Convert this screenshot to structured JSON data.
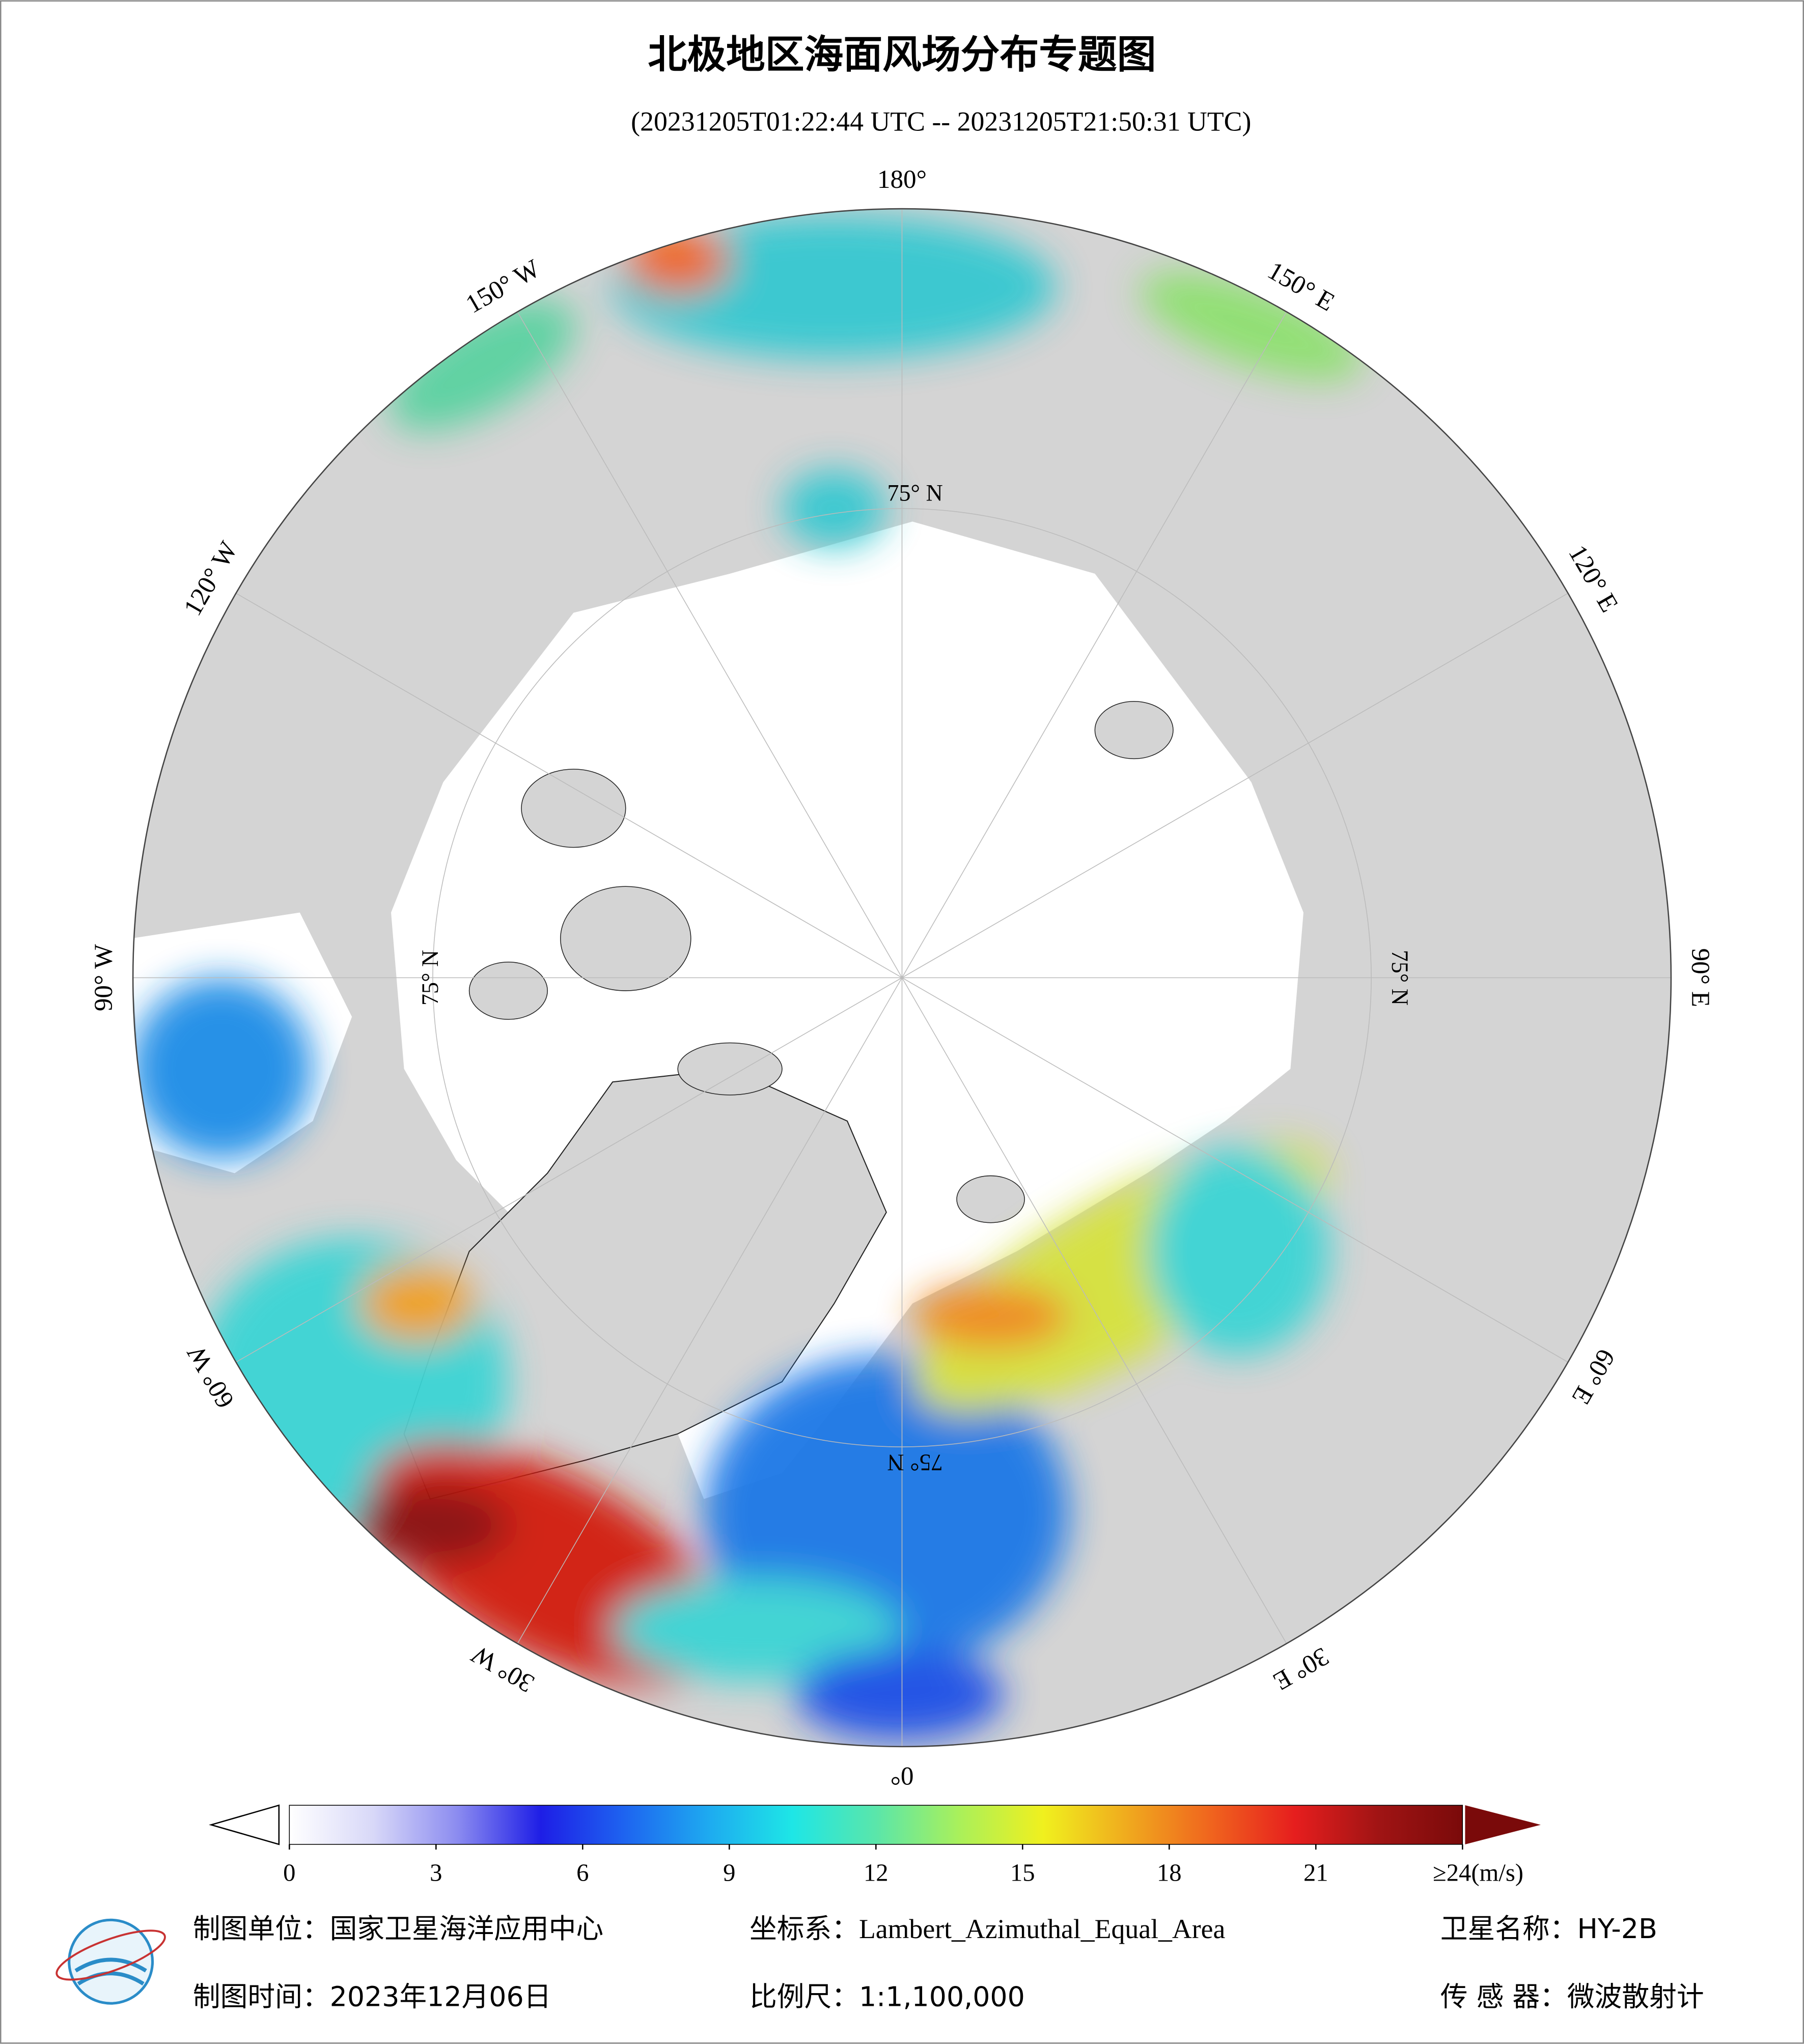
{
  "header": {
    "title": "北极地区海面风场分布专题图",
    "subtitle": "(20231205T01:22:44 UTC -- 20231205T21:50:31 UTC)"
  },
  "map": {
    "longitude_labels": [
      "180°",
      "150° W",
      "120° W",
      "90° W",
      "60° W",
      "30° W",
      "0°",
      "30° E",
      "60° E",
      "90° E",
      "120° E",
      "150° E"
    ],
    "latitude_label": "75° N"
  },
  "colorbar": {
    "lim": [
      0,
      24
    ],
    "ticks": [
      0,
      3,
      6,
      9,
      12,
      15,
      18,
      21,
      {
        "value": 24,
        "label": "≥24(m/s)"
      }
    ],
    "colors": [
      "#ffffff",
      "#d8d8f8",
      "#8c8cf0",
      "#1e1ee6",
      "#1e64f0",
      "#1eaaf0",
      "#1ee6e6",
      "#5ae6aa",
      "#aaf05a",
      "#f0f01e",
      "#f0aa1e",
      "#f0641e",
      "#e61e1e",
      "#a01414",
      "#7a0a0a"
    ],
    "over_color": "#7a0a0a",
    "under_color": "#ffffff"
  },
  "footer": {
    "rows": [
      [
        "制图单位：国家卫星海洋应用中心",
        "坐标系：Lambert_Azimuthal_Equal_Area",
        "卫星名称：HY-2B"
      ],
      [
        "制图时间：2023年12月06日",
        "比例尺：1:1,100,000",
        "传 感 器：微波散射计"
      ]
    ]
  }
}
